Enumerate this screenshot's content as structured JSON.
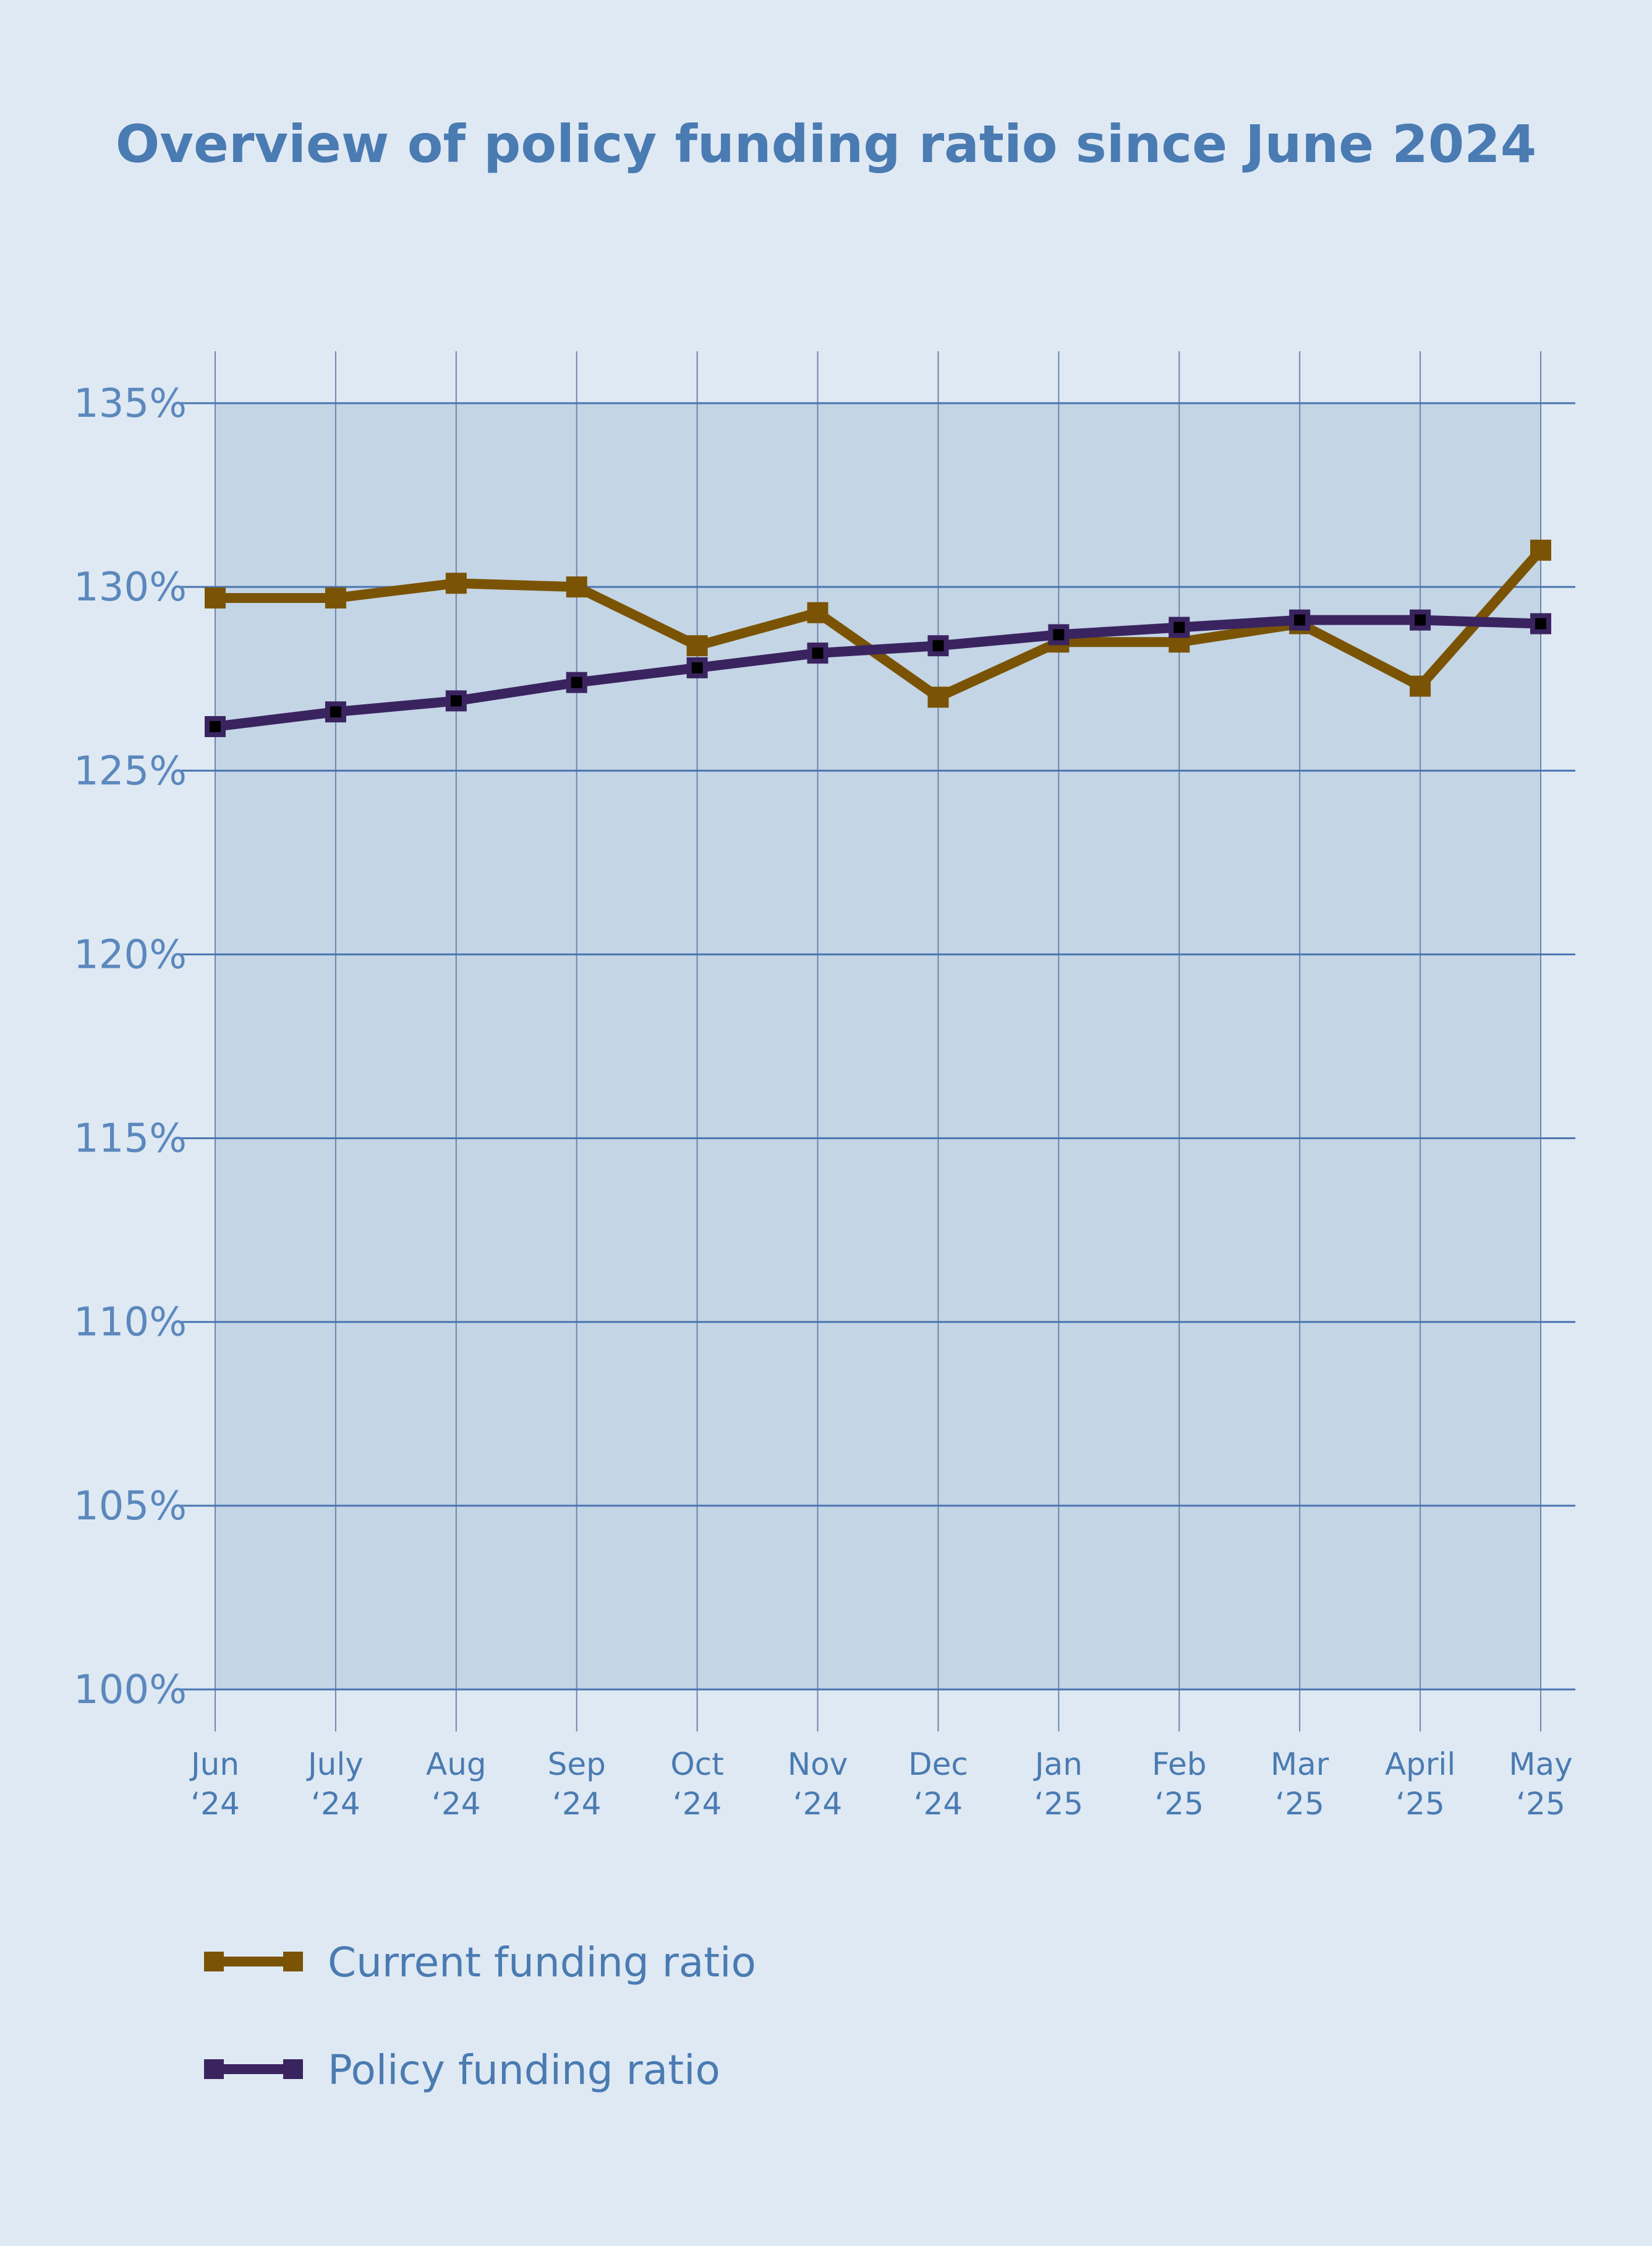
{
  "chart_data": {
    "type": "line",
    "title": "Overview of policy funding ratio since June 2024",
    "xlabel": "",
    "ylabel": "",
    "categories": [
      [
        "Jun",
        "‘24"
      ],
      [
        "July",
        "‘24"
      ],
      [
        "Aug",
        "‘24"
      ],
      [
        "Sep",
        "‘24"
      ],
      [
        "Oct",
        "‘24"
      ],
      [
        "Nov",
        "‘24"
      ],
      [
        "Dec",
        "‘24"
      ],
      [
        "Jan",
        "‘25"
      ],
      [
        "Feb",
        "‘25"
      ],
      [
        "Mar",
        "‘25"
      ],
      [
        "April",
        "‘25"
      ],
      [
        "May",
        "‘25"
      ]
    ],
    "ylim": [
      100,
      135
    ],
    "yticks": [
      100,
      105,
      110,
      115,
      120,
      125,
      130,
      135
    ],
    "ytick_suffix": "%",
    "grid": true,
    "legend_position": "bottom-left",
    "series": [
      {
        "name": "Current funding ratio",
        "color": "#7a5404",
        "values": [
          129.7,
          129.7,
          130.1,
          130.0,
          128.4,
          129.3,
          127.0,
          128.5,
          128.5,
          129.0,
          127.3,
          131.0
        ]
      },
      {
        "name": "Policy funding ratio",
        "color": "#3a2460",
        "values": [
          126.2,
          126.6,
          126.9,
          127.4,
          127.8,
          128.2,
          128.4,
          128.7,
          128.9,
          129.1,
          129.1,
          129.0
        ]
      }
    ],
    "colors": {
      "page_background": "#dfe9f3",
      "plot_background": "#c4d5e5",
      "gridline": "#4a75b0",
      "text": "#4a7bb2",
      "marker_fill": "#000000"
    }
  }
}
